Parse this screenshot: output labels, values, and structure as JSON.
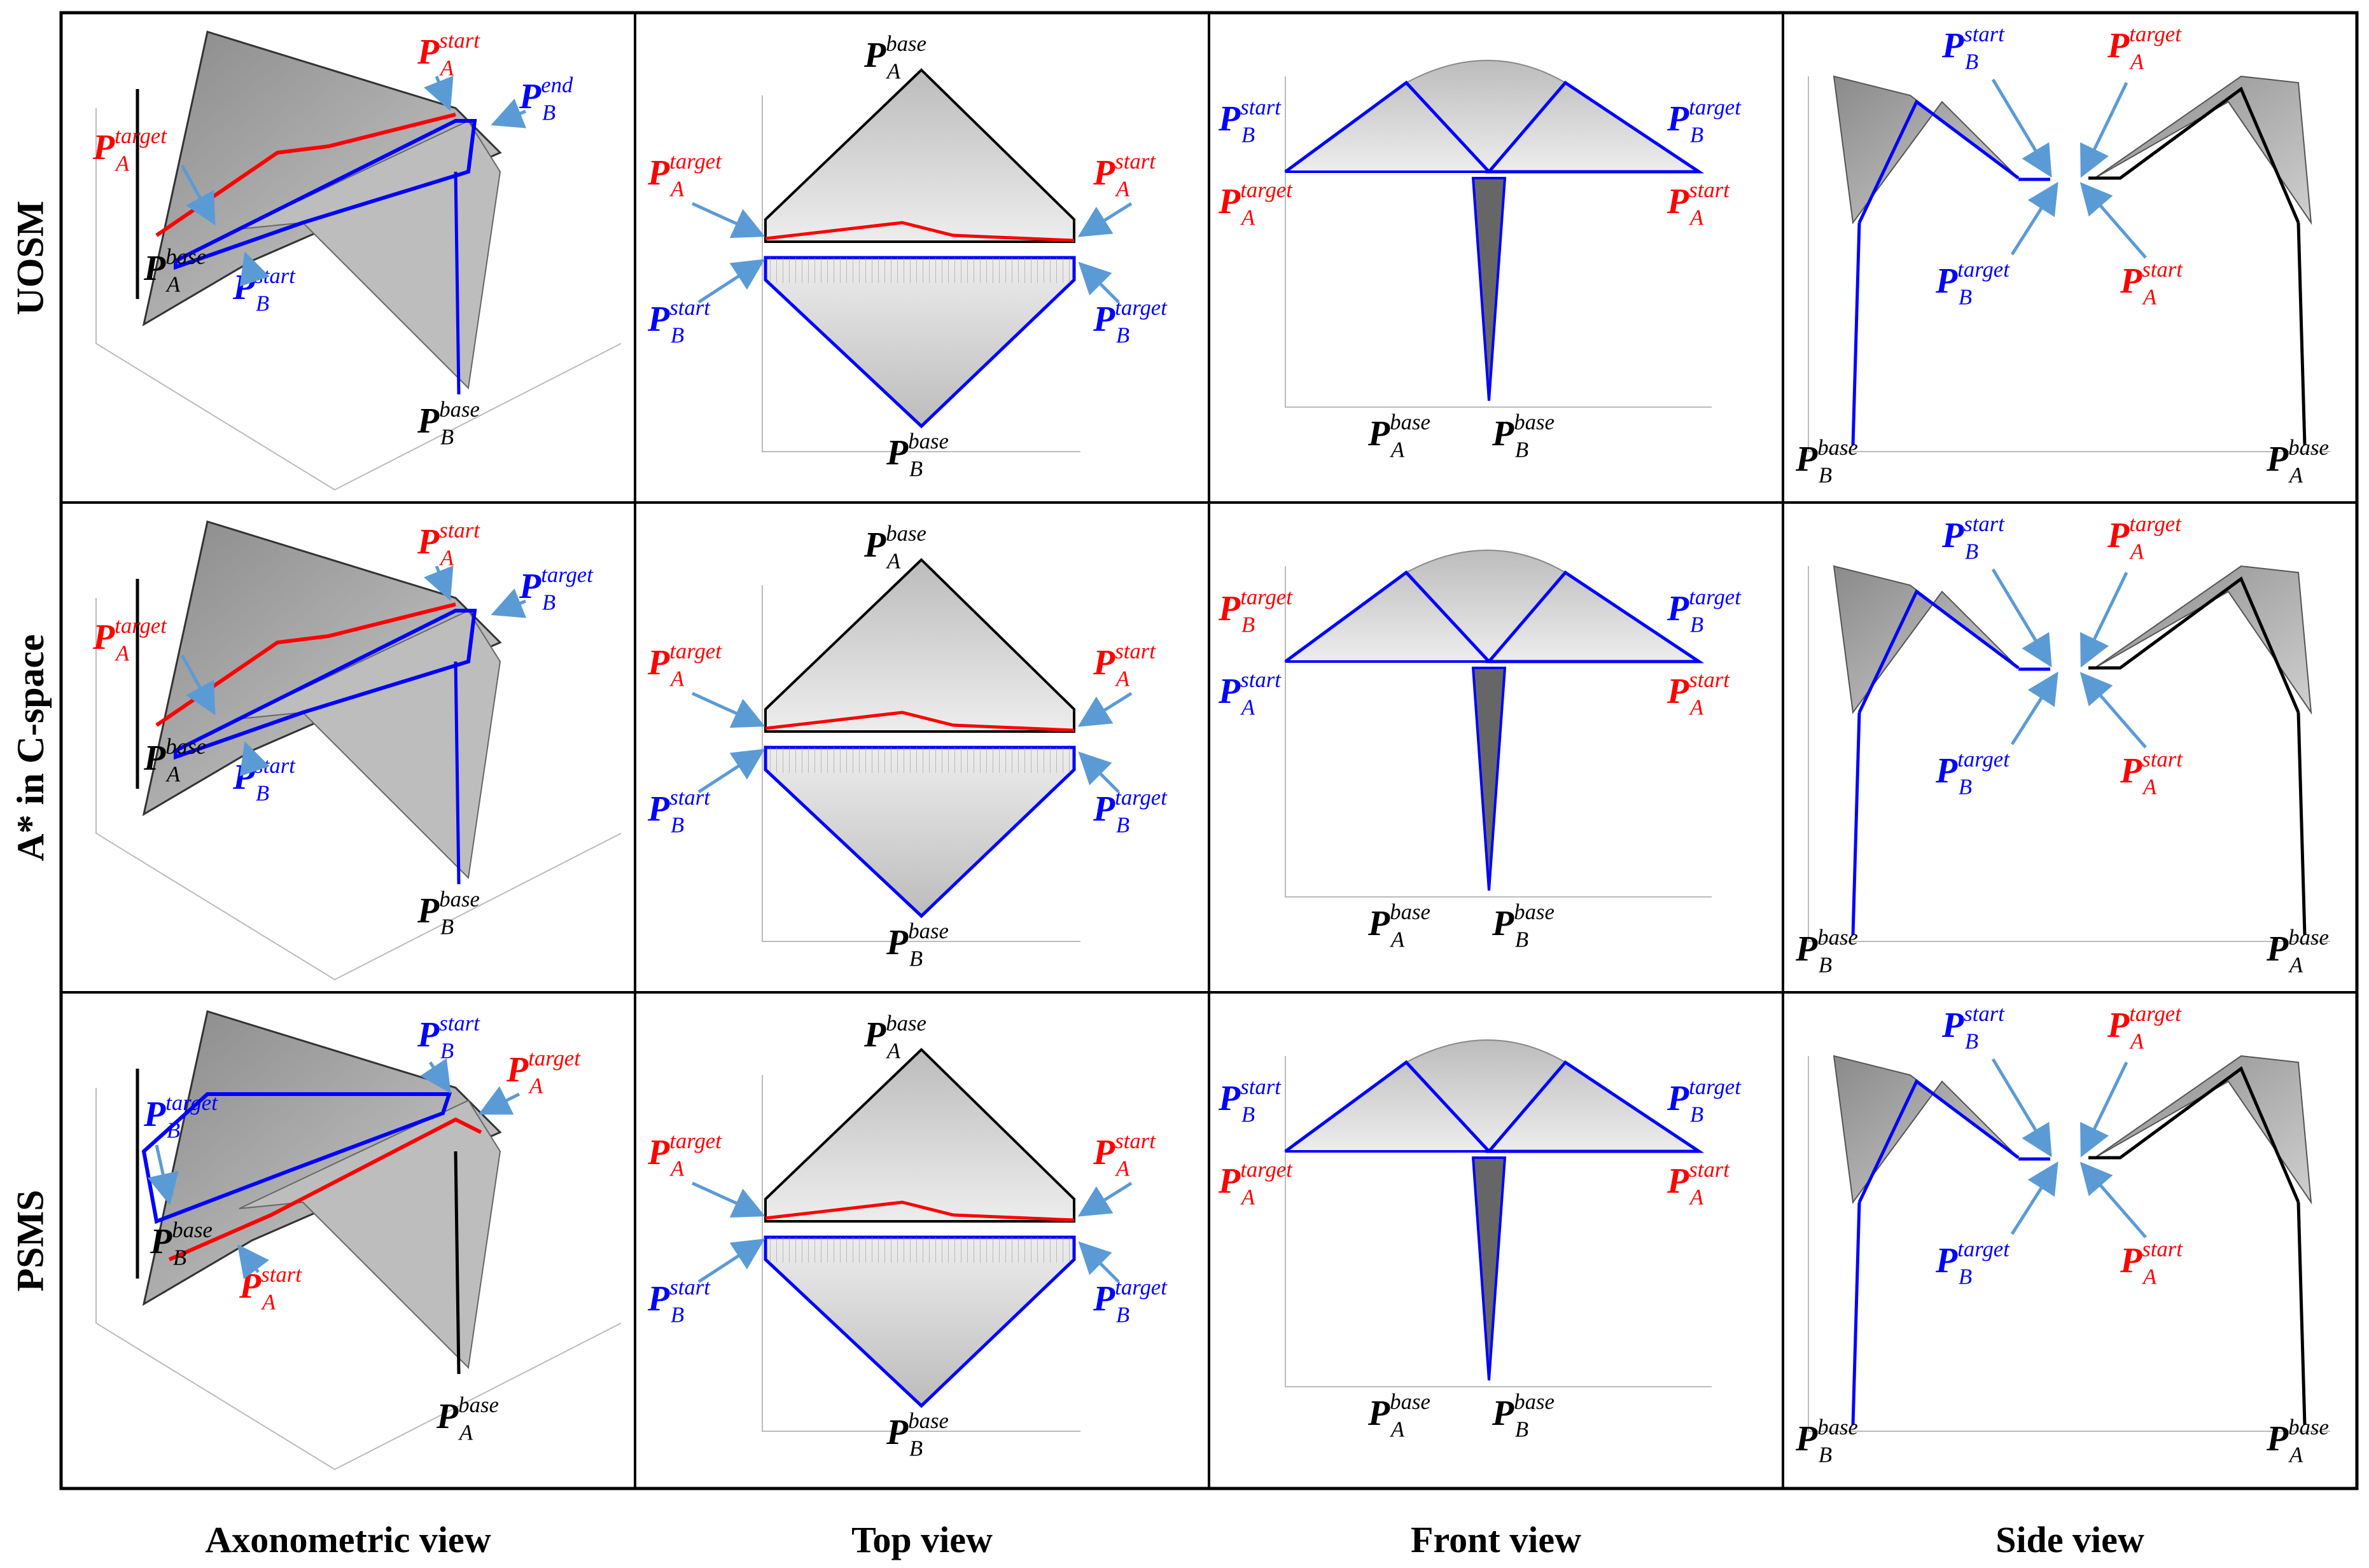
{
  "figure": {
    "row_labels": [
      "UOSM",
      "A* in C-space",
      "PSMS"
    ],
    "column_labels": [
      "Axonometric view",
      "Top view",
      "Front view",
      "Side view"
    ],
    "point_label_symbol": "P",
    "point_sub_A": "A",
    "point_sub_B": "B",
    "sup_start": "start",
    "sup_target": "target",
    "sup_base": "base",
    "sup_end": "end",
    "colors": {
      "robot_A_path": "#ff0000",
      "robot_B_path": "#0000ff",
      "arm_sweep": "#808080",
      "base_label": "#000000"
    }
  }
}
